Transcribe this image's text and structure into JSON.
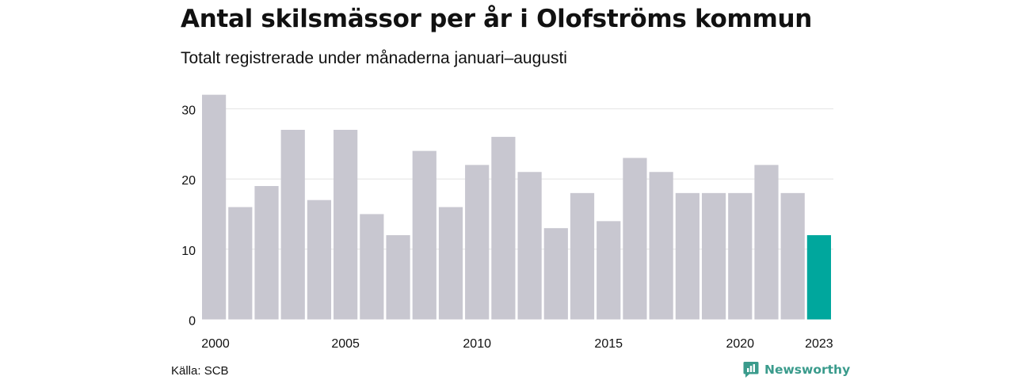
{
  "title": "Antal skilsmässor per år i Olofströms kommun",
  "subtitle": "Totalt registrerade under månaderna januari–augusti",
  "source": "Källa: SCB",
  "brand": {
    "name": "Newsworthy",
    "icon": "newsworthy-logo-icon",
    "color": "#3a9b8c"
  },
  "chart_data": {
    "type": "bar",
    "x": [
      2000,
      2001,
      2002,
      2003,
      2004,
      2005,
      2006,
      2007,
      2008,
      2009,
      2010,
      2011,
      2012,
      2013,
      2014,
      2015,
      2016,
      2017,
      2018,
      2019,
      2020,
      2021,
      2022,
      2023
    ],
    "values": [
      32,
      16,
      19,
      27,
      17,
      27,
      15,
      12,
      24,
      16,
      22,
      26,
      21,
      13,
      18,
      14,
      23,
      21,
      18,
      18,
      18,
      22,
      18,
      12
    ],
    "x_tick_labels": [
      "2000",
      "2005",
      "2010",
      "2015",
      "2020",
      "2023"
    ],
    "y_ticks": [
      0,
      10,
      20,
      30
    ],
    "ylim": [
      0,
      32
    ],
    "grid": "horizontal",
    "colors": {
      "default": "#c8c7d0",
      "highlight": "#00a79d"
    },
    "highlight": [
      2023
    ]
  }
}
